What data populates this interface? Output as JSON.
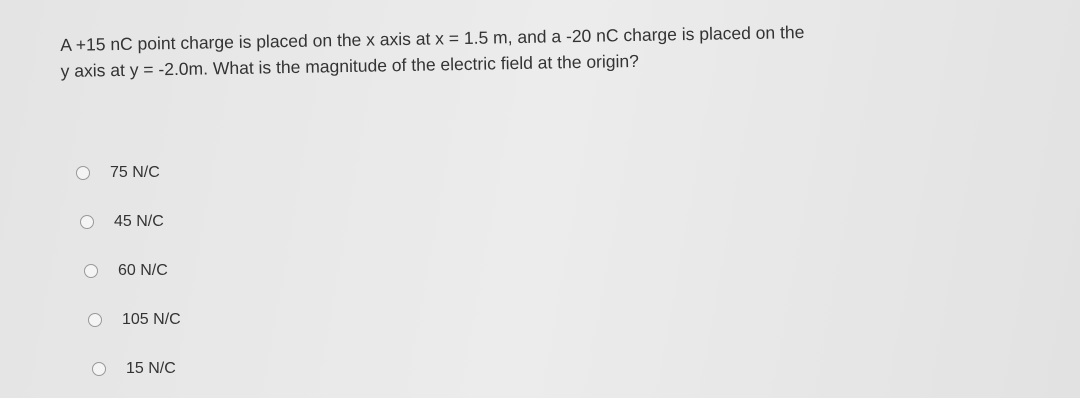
{
  "question": {
    "lines": [
      "A +15 nC point charge is placed on the x axis at x = 1.5 m, and a -20 nC charge is placed on the",
      "y axis at y = -2.0m. What is the magnitude of the electric field at the origin?"
    ]
  },
  "options": [
    "75 N/C",
    "45 N/C",
    "60 N/C",
    "105 N/C",
    "15 N/C"
  ]
}
